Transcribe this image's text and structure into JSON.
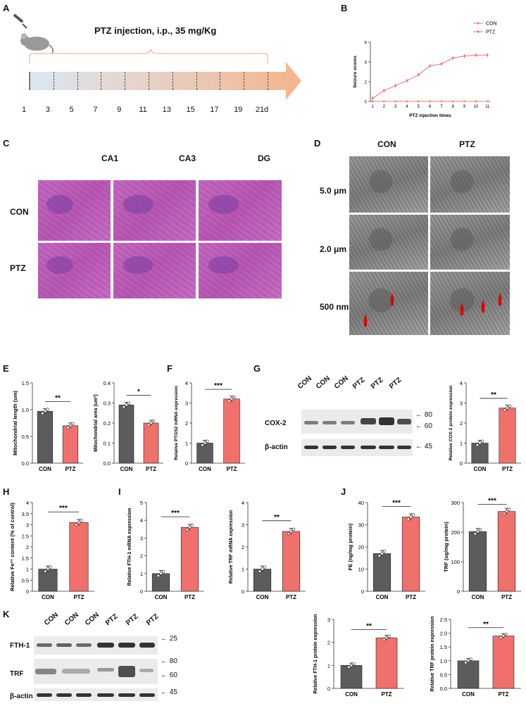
{
  "panels": {
    "A": {
      "letter": "A",
      "title": "PTZ injection, i.p., 35 mg/Kg",
      "ticks": [
        "1",
        "3",
        "5",
        "7",
        "9",
        "11",
        "13",
        "15",
        "17",
        "19",
        "21d"
      ]
    },
    "B": {
      "letter": "B"
    },
    "C": {
      "letter": "C",
      "cols": [
        "CA1",
        "CA3",
        "DG"
      ],
      "rows": [
        "CON",
        "PTZ"
      ]
    },
    "D": {
      "letter": "D",
      "cols": [
        "CON",
        "PTZ"
      ],
      "rows": [
        "5.0 μm",
        "2.0 μm",
        "500 nm"
      ]
    },
    "E": {
      "letter": "E"
    },
    "F": {
      "letter": "F"
    },
    "G": {
      "letter": "G",
      "lanes": [
        "CON",
        "CON",
        "CON",
        "PTZ",
        "PTZ",
        "PTZ"
      ],
      "rows": [
        "COX-2",
        "β-actin"
      ],
      "markers": [
        "80",
        "60",
        "45"
      ]
    },
    "H": {
      "letter": "H"
    },
    "I": {
      "letter": "I"
    },
    "J": {
      "letter": "J"
    },
    "K": {
      "letter": "K",
      "lanes": [
        "CON",
        "CON",
        "CON",
        "PTZ",
        "PTZ",
        "PTZ"
      ],
      "rows": [
        "FTH-1",
        "TRF",
        "β-actin"
      ],
      "markers": [
        "25",
        "80",
        "60",
        "45"
      ]
    }
  },
  "colors": {
    "con": "#5c5c5c",
    "ptz": "#f0706c",
    "line_con": "#e8826f",
    "line_ptz": "#f0706c"
  },
  "chart_data": [
    {
      "id": "B",
      "type": "line",
      "xlabel": "PTZ injection times",
      "ylabel": "Seizure scores",
      "x": [
        1,
        2,
        3,
        4,
        5,
        6,
        7,
        8,
        9,
        10,
        11
      ],
      "ylim": [
        0,
        6
      ],
      "yticks": [
        "0",
        "2",
        "4",
        "6"
      ],
      "series": [
        {
          "name": "CON",
          "values": [
            0,
            0,
            0,
            0,
            0,
            0,
            0,
            0,
            0,
            0,
            0
          ]
        },
        {
          "name": "PTZ",
          "values": [
            0.3,
            1.1,
            1.6,
            2.1,
            2.7,
            3.6,
            3.8,
            4.4,
            4.6,
            4.7,
            4.7
          ]
        }
      ]
    },
    {
      "id": "E1",
      "type": "bar",
      "categories": [
        "CON",
        "PTZ"
      ],
      "values": [
        0.97,
        0.7
      ],
      "ylabel": "Mitochondrial length (um)",
      "ylim": [
        0,
        1.5
      ],
      "yticks": [
        "0.0",
        "0.5",
        "1.0",
        "1.5"
      ],
      "sig": "**"
    },
    {
      "id": "E2",
      "type": "bar",
      "categories": [
        "CON",
        "PTZ"
      ],
      "values": [
        0.29,
        0.2
      ],
      "ylabel": "Mitochondrial area (um²)",
      "ylim": [
        0,
        0.4
      ],
      "yticks": [
        "0.0",
        "0.1",
        "0.2",
        "0.3",
        "0.4"
      ],
      "sig": "*"
    },
    {
      "id": "F",
      "type": "bar",
      "categories": [
        "CON",
        "PTZ"
      ],
      "values": [
        1.0,
        3.2
      ],
      "ylabel": "Relative PTGS2 mRNA expression",
      "ylim": [
        0,
        4
      ],
      "yticks": [
        "0",
        "1",
        "2",
        "3",
        "4"
      ],
      "sig": "***"
    },
    {
      "id": "G",
      "type": "bar",
      "categories": [
        "CON",
        "PTZ"
      ],
      "values": [
        1.0,
        2.75
      ],
      "ylabel": "Relative COX-2 protein expression",
      "ylim": [
        0,
        4
      ],
      "yticks": [
        "0",
        "1",
        "2",
        "3",
        "4"
      ],
      "sig": "**"
    },
    {
      "id": "H",
      "type": "bar",
      "categories": [
        "CON",
        "PTZ"
      ],
      "values": [
        1.0,
        3.1
      ],
      "ylabel": "Relative Fe²⁺ content (% of control)",
      "ylim": [
        0,
        4
      ],
      "yticks": [
        "0",
        "0.5",
        "1",
        "1.5",
        "2",
        "2.5",
        "3",
        "3.5",
        "4"
      ],
      "sig": "***"
    },
    {
      "id": "I1",
      "type": "bar",
      "categories": [
        "CON",
        "PTZ"
      ],
      "values": [
        1.0,
        3.6
      ],
      "ylabel": "Relative FTH-1 mRNA expression",
      "ylim": [
        0,
        5
      ],
      "yticks": [
        "0",
        "1",
        "2",
        "3",
        "4",
        "5"
      ],
      "sig": "***"
    },
    {
      "id": "I2",
      "type": "bar",
      "categories": [
        "CON",
        "PTZ"
      ],
      "values": [
        1.0,
        2.7
      ],
      "ylabel": "Relative TRF mRNA expression",
      "ylim": [
        0,
        4
      ],
      "yticks": [
        "0",
        "1",
        "2",
        "3",
        "4"
      ],
      "sig": "**"
    },
    {
      "id": "J1",
      "type": "bar",
      "categories": [
        "CON",
        "PTZ"
      ],
      "values": [
        17,
        33.5
      ],
      "ylabel": "FE (ng/mg protein)",
      "ylim": [
        0,
        40
      ],
      "yticks": [
        "0",
        "10",
        "20",
        "30",
        "40"
      ],
      "sig": "***"
    },
    {
      "id": "J2",
      "type": "bar",
      "categories": [
        "CON",
        "PTZ"
      ],
      "values": [
        202,
        270
      ],
      "ylabel": "TRF (ug/mg protein)",
      "ylim": [
        0,
        300
      ],
      "yticks": [
        "0",
        "100",
        "200",
        "300"
      ],
      "sig": "***"
    },
    {
      "id": "K1",
      "type": "bar",
      "categories": [
        "CON",
        "PTZ"
      ],
      "values": [
        1.0,
        2.2
      ],
      "ylabel": "Relative FTH-1 protein expression",
      "ylim": [
        0,
        3
      ],
      "yticks": [
        "0",
        "1",
        "2",
        "3"
      ],
      "sig": "**"
    },
    {
      "id": "K2",
      "type": "bar",
      "categories": [
        "CON",
        "PTZ"
      ],
      "values": [
        1.0,
        1.9
      ],
      "ylabel": "Relative TRF protein expression",
      "ylim": [
        0,
        2.5
      ],
      "yticks": [
        "0.0",
        "0.5",
        "1.0",
        "1.5",
        "2.0",
        "2.5"
      ],
      "sig": "**"
    }
  ]
}
